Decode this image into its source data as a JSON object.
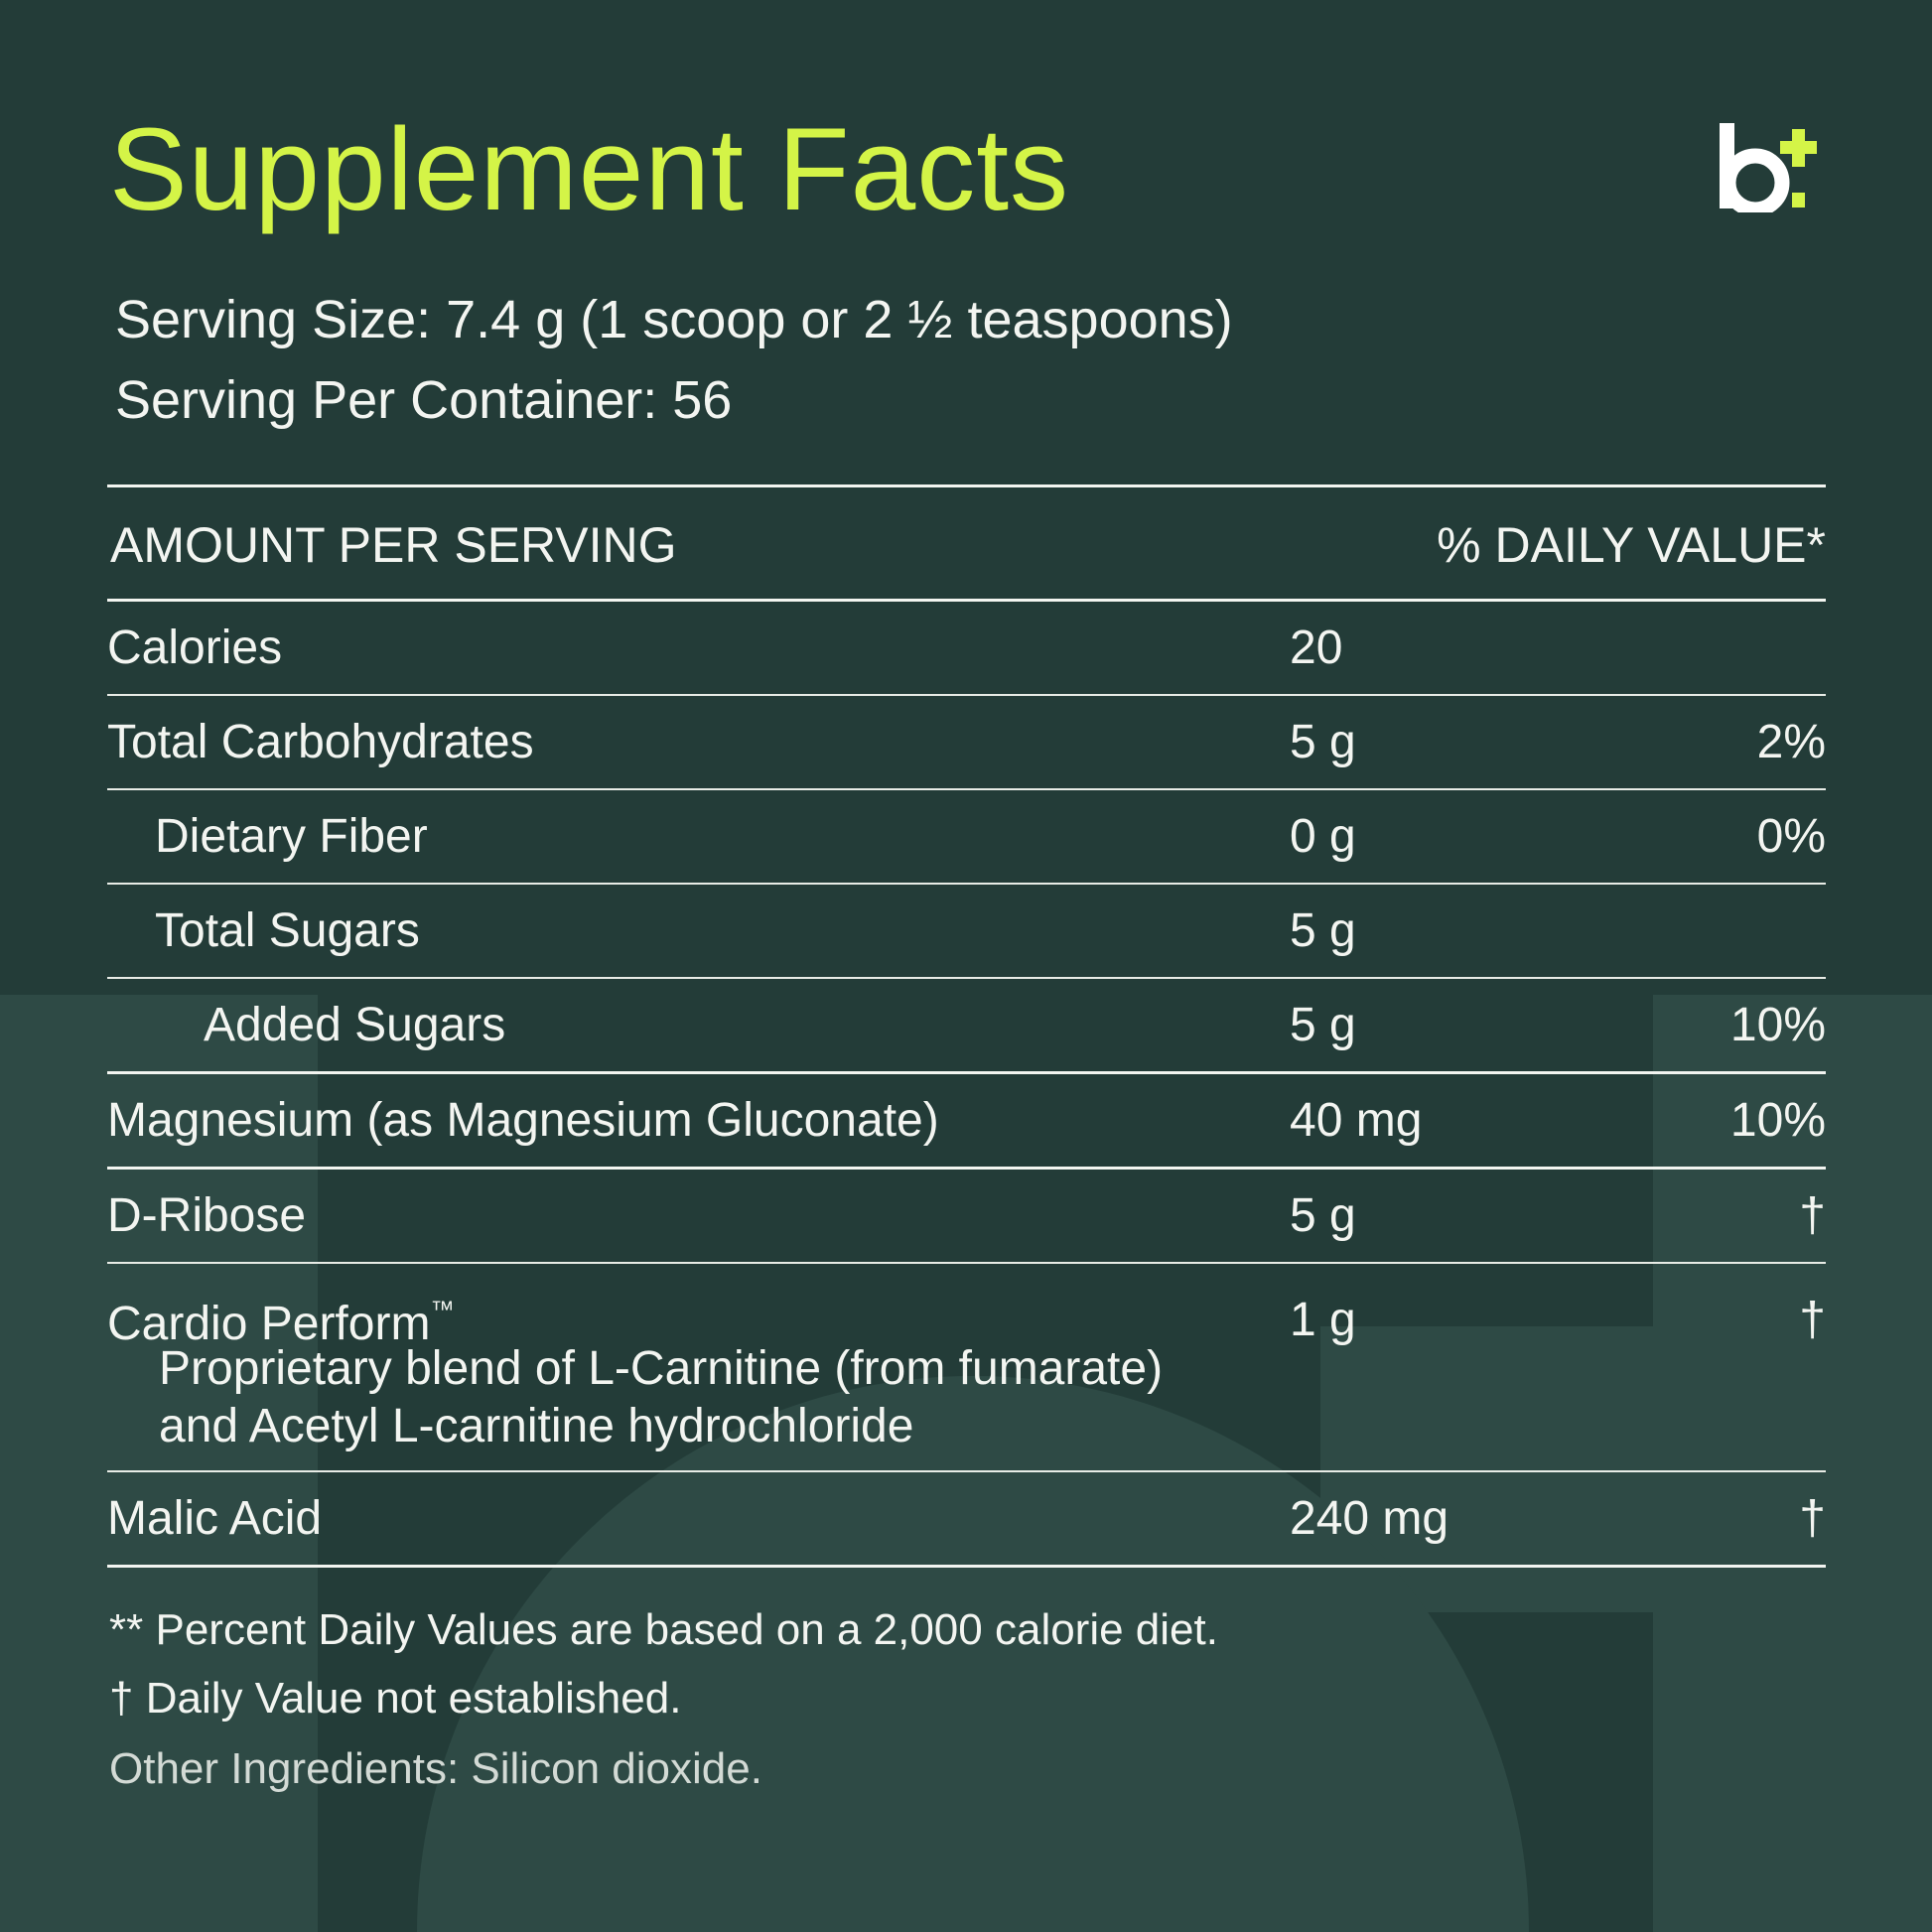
{
  "colors": {
    "background": "#233c38",
    "background_shape": "#2e4a45",
    "accent": "#d4f447",
    "text": "#f3f5f1"
  },
  "title": "Supplement Facts",
  "logo": {
    "icon": "b-plus-logo",
    "letter": "b"
  },
  "serving_size": "Serving Size: 7.4 g (1 scoop or 2 ½ teaspoons)",
  "servings_per_container": "Serving Per Container: 56",
  "table": {
    "header_left": "AMOUNT PER SERVING",
    "header_right": "% DAILY VALUE*",
    "rows": [
      {
        "name": "Calories",
        "amount": "20",
        "dv": ""
      },
      {
        "name": "Total Carbohydrates",
        "amount": "5 g",
        "dv": "2%"
      },
      {
        "name": "Dietary Fiber",
        "amount": "0 g",
        "dv": "0%"
      },
      {
        "name": "Total Sugars",
        "amount": "5 g",
        "dv": ""
      },
      {
        "name": "Added Sugars",
        "amount": "5 g",
        "dv": "10%"
      },
      {
        "name": "Magnesium (as Magnesium Gluconate)",
        "amount": "40 mg",
        "dv": "10%"
      },
      {
        "name": "D-Ribose",
        "amount": "5 g",
        "dv": "†"
      },
      {
        "name": "Cardio Perform",
        "trademark": "™",
        "sub_line_1": "Proprietary blend of L-Carnitine (from fumarate)",
        "sub_line_2": "and Acetyl L-carnitine hydrochloride",
        "amount": "1 g",
        "dv": "†"
      },
      {
        "name": "Malic Acid",
        "amount": "240 mg",
        "dv": "†"
      }
    ]
  },
  "footnotes": {
    "daily_values": "** Percent Daily Values are based on a 2,000 calorie diet.",
    "not_established": "† Daily Value not established.",
    "other_ingredients": "Other Ingredients: Silicon dioxide."
  }
}
